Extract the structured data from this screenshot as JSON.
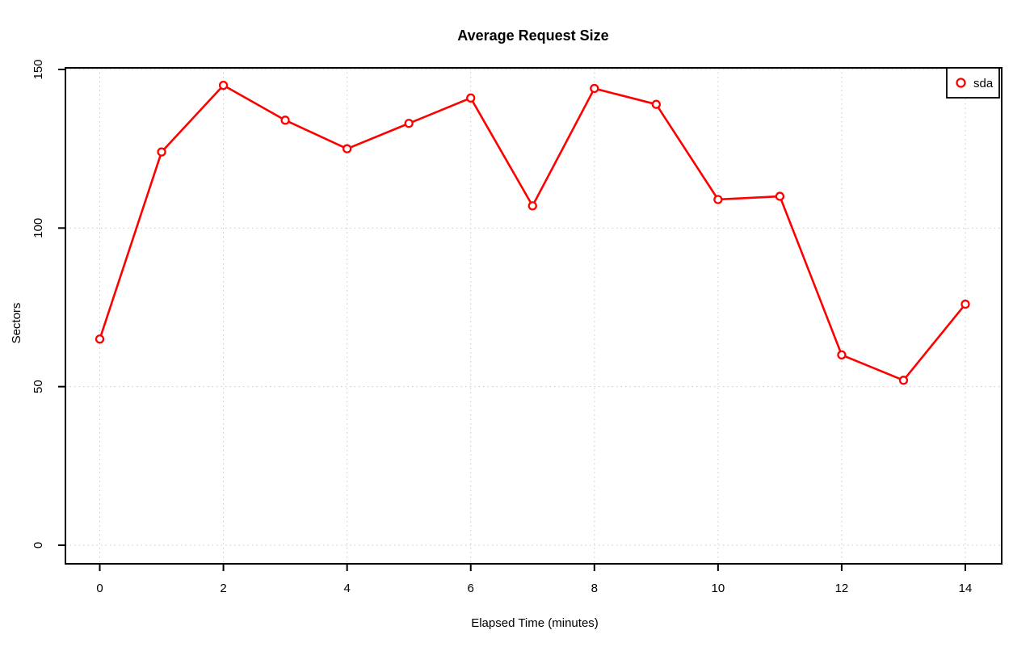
{
  "title": "Average Request Size",
  "chart_data": {
    "type": "line",
    "title": "Average Request Size",
    "xlabel": "Elapsed Time (minutes)",
    "ylabel": "Sectors",
    "x": [
      0,
      1,
      2,
      3,
      4,
      5,
      6,
      7,
      8,
      9,
      10,
      11,
      12,
      13,
      14
    ],
    "series": [
      {
        "name": "sda",
        "color": "#FF0000",
        "marker": "open-circle",
        "values": [
          65,
          124,
          145,
          134,
          125,
          133,
          141,
          107,
          144,
          139,
          109,
          110,
          60,
          52,
          76
        ]
      }
    ],
    "xticks": [
      0,
      2,
      4,
      6,
      8,
      10,
      12,
      14
    ],
    "yticks": [
      0,
      50,
      100,
      150
    ],
    "xlim": [
      -0.6,
      14.6
    ],
    "ylim": [
      -6,
      151
    ],
    "grid": true,
    "grid_color": "#C8C8C8",
    "axis_color": "#000000",
    "background_color": "#FFFFFF",
    "legend": {
      "position": "top-right",
      "entries": [
        "sda"
      ]
    }
  }
}
